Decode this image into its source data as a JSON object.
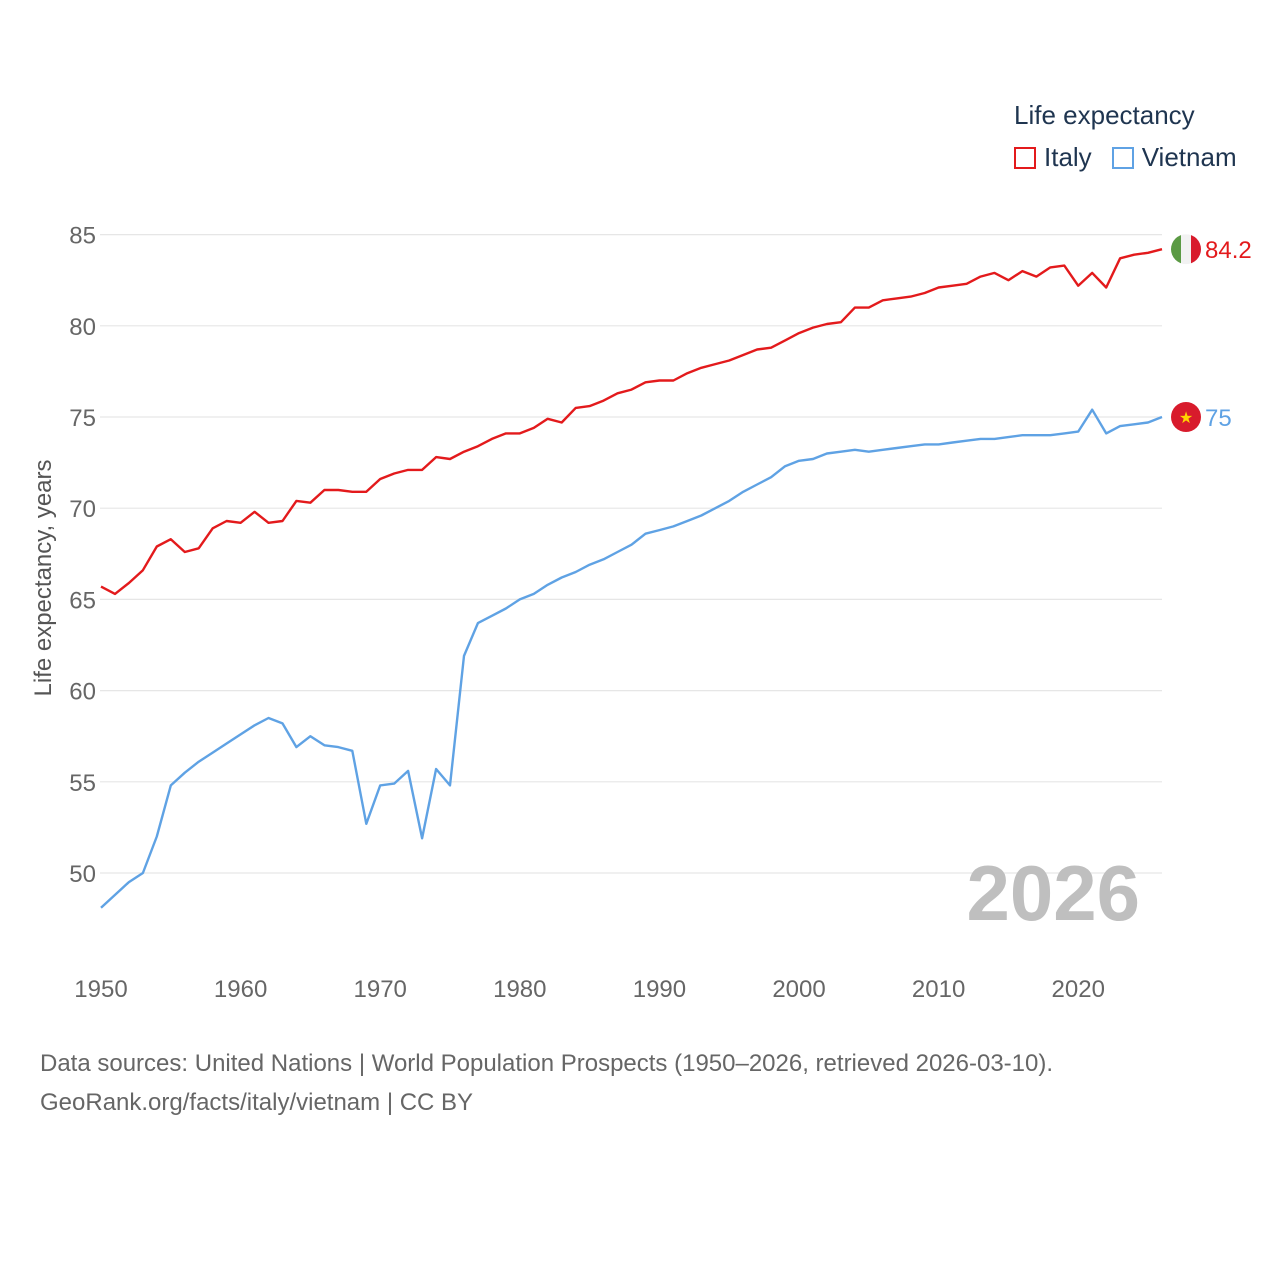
{
  "chart_data": {
    "type": "line",
    "legend_title": "Life expectancy",
    "ylabel": "Life expectancy, years",
    "ylim": [
      46,
      86
    ],
    "yticks": [
      50,
      55,
      60,
      65,
      70,
      75,
      80,
      85
    ],
    "xlim": [
      1950,
      2026
    ],
    "xticks": [
      1950,
      1960,
      1970,
      1980,
      1990,
      2000,
      2010,
      2020
    ],
    "current_year": "2026",
    "x": [
      1950,
      1951,
      1952,
      1953,
      1954,
      1955,
      1956,
      1957,
      1958,
      1959,
      1960,
      1961,
      1962,
      1963,
      1964,
      1965,
      1966,
      1967,
      1968,
      1969,
      1970,
      1971,
      1972,
      1973,
      1974,
      1975,
      1976,
      1977,
      1978,
      1979,
      1980,
      1981,
      1982,
      1983,
      1984,
      1985,
      1986,
      1987,
      1988,
      1989,
      1990,
      1991,
      1992,
      1993,
      1994,
      1995,
      1996,
      1997,
      1998,
      1999,
      2000,
      2001,
      2002,
      2003,
      2004,
      2005,
      2006,
      2007,
      2008,
      2009,
      2010,
      2011,
      2012,
      2013,
      2014,
      2015,
      2016,
      2017,
      2018,
      2019,
      2020,
      2021,
      2022,
      2023,
      2024,
      2025,
      2026
    ],
    "series": [
      {
        "name": "Italy",
        "color": "#e31a1c",
        "end_label": "84.2",
        "flag": "italy-flag-icon",
        "values": [
          65.7,
          65.3,
          65.9,
          66.6,
          67.9,
          68.3,
          67.6,
          67.8,
          68.9,
          69.3,
          69.2,
          69.8,
          69.2,
          69.3,
          70.4,
          70.3,
          71.0,
          71.0,
          70.9,
          70.9,
          71.6,
          71.9,
          72.1,
          72.1,
          72.8,
          72.7,
          73.1,
          73.4,
          73.8,
          74.1,
          74.1,
          74.4,
          74.9,
          74.7,
          75.5,
          75.6,
          75.9,
          76.3,
          76.5,
          76.9,
          77.0,
          77.0,
          77.4,
          77.7,
          77.9,
          78.1,
          78.4,
          78.7,
          78.8,
          79.2,
          79.6,
          79.9,
          80.1,
          80.2,
          81.0,
          81.0,
          81.4,
          81.5,
          81.6,
          81.8,
          82.1,
          82.2,
          82.3,
          82.7,
          82.9,
          82.5,
          83.0,
          82.7,
          83.2,
          83.3,
          82.2,
          82.9,
          82.1,
          83.7,
          83.9,
          84.0,
          84.2
        ]
      },
      {
        "name": "Vietnam",
        "color": "#5fa2e4",
        "end_label": "75",
        "flag": "vietnam-flag-icon",
        "values": [
          48.1,
          48.8,
          49.5,
          50.0,
          52.0,
          54.8,
          55.5,
          56.1,
          56.6,
          57.1,
          57.6,
          58.1,
          58.5,
          58.2,
          56.9,
          57.5,
          57.0,
          56.9,
          56.7,
          52.7,
          54.8,
          54.9,
          55.6,
          51.9,
          55.7,
          54.8,
          61.9,
          63.7,
          64.1,
          64.5,
          65.0,
          65.3,
          65.8,
          66.2,
          66.5,
          66.9,
          67.2,
          67.6,
          68.0,
          68.6,
          68.8,
          69.0,
          69.3,
          69.6,
          70.0,
          70.4,
          70.9,
          71.3,
          71.7,
          72.3,
          72.6,
          72.7,
          73.0,
          73.1,
          73.2,
          73.1,
          73.2,
          73.3,
          73.4,
          73.5,
          73.5,
          73.6,
          73.7,
          73.8,
          73.8,
          73.9,
          74.0,
          74.0,
          74.0,
          74.1,
          74.2,
          75.4,
          74.1,
          74.5,
          74.6,
          74.7,
          75.0
        ]
      }
    ]
  },
  "footer": {
    "line1": "Data sources: United Nations | World Population Prospects (1950–2026, retrieved 2026-03-10).",
    "line2": "GeoRank.org/facts/italy/vietnam | CC BY"
  }
}
